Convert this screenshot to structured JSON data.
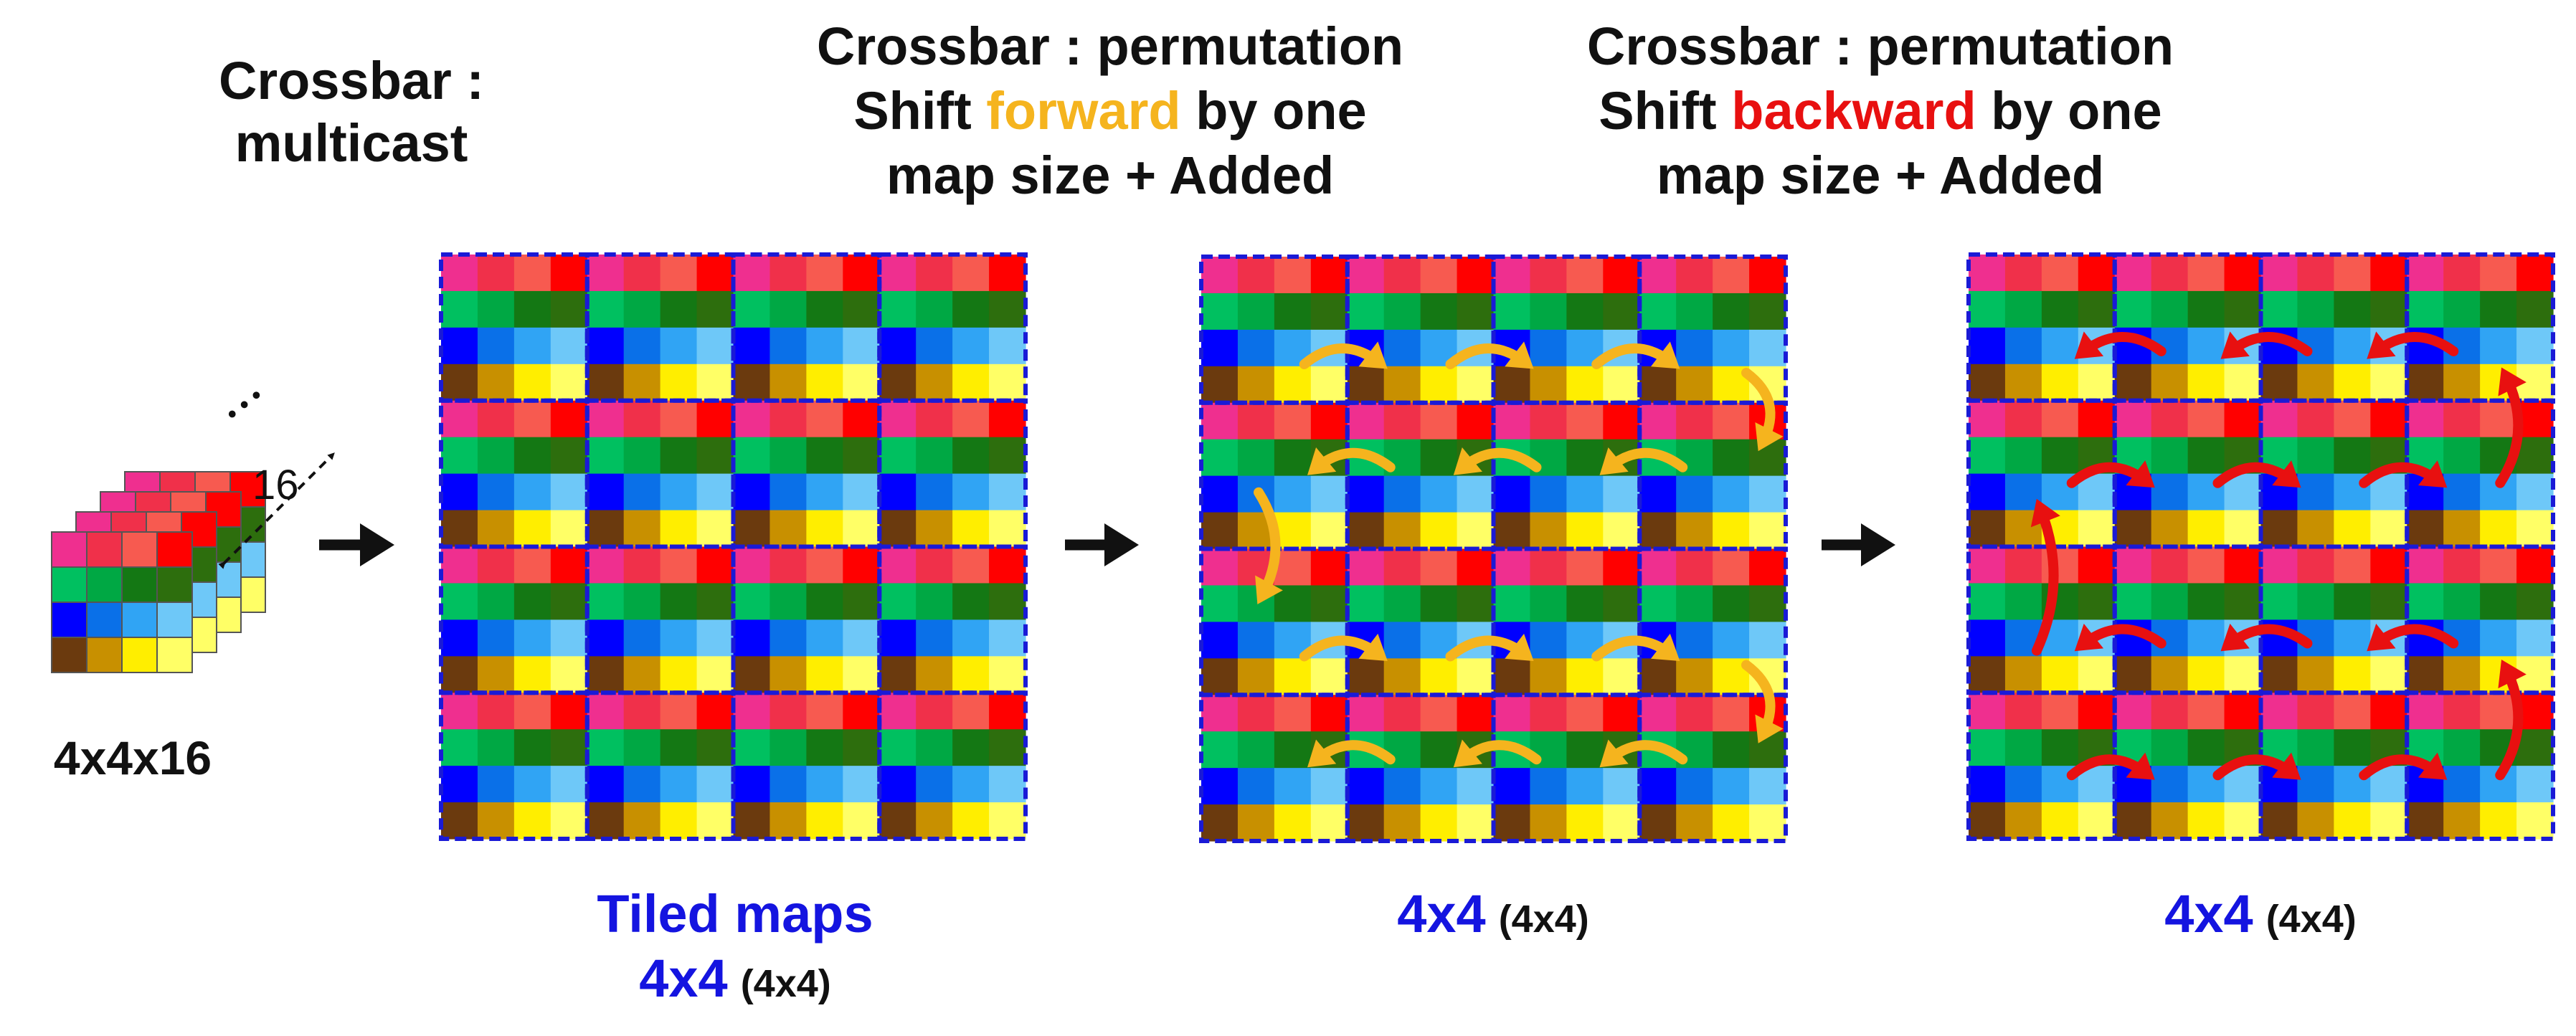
{
  "titles": {
    "multicast": [
      "Crossbar :",
      "multicast"
    ],
    "forward": {
      "line1": "Crossbar : permutation",
      "line2_pre": "Shift ",
      "line2_hl": "forward",
      "line2_post": " by one",
      "line3": "map size + Added"
    },
    "backward": {
      "line1": "Crossbar : permutation",
      "line2_pre": "Shift ",
      "line2_hl": "backward",
      "line2_post": " by one",
      "line3": "map size + Added"
    }
  },
  "stack": {
    "depth_label": "16",
    "dots": "• • •",
    "dims_label": "4x4x16"
  },
  "captions": {
    "tiled_title": "Tiled maps",
    "main": "4x4",
    "paren": "(4x4)"
  },
  "colors": {
    "forward_highlight": "#f5b41e",
    "backward_highlight": "#e81010",
    "caption_blue": "#1414e0",
    "tile_border": "#1a1ad6",
    "forward_arrow": "#f5b41e",
    "backward_arrow": "#e81010",
    "cell_rows": [
      [
        "#ef2f8f",
        "#f0304a",
        "#f75a50",
        "#ff0000"
      ],
      [
        "#00c060",
        "#00a844",
        "#147814",
        "#2d6e0d"
      ],
      [
        "#0000ff",
        "#0a70e8",
        "#30a4f4",
        "#6ec8f8"
      ],
      [
        "#6b3a0e",
        "#c89000",
        "#ffee00",
        "#ffff66"
      ]
    ]
  },
  "icons": [
    "arrow-right-icon",
    "curved-arrow-icon",
    "dashed-double-arrow-icon"
  ]
}
